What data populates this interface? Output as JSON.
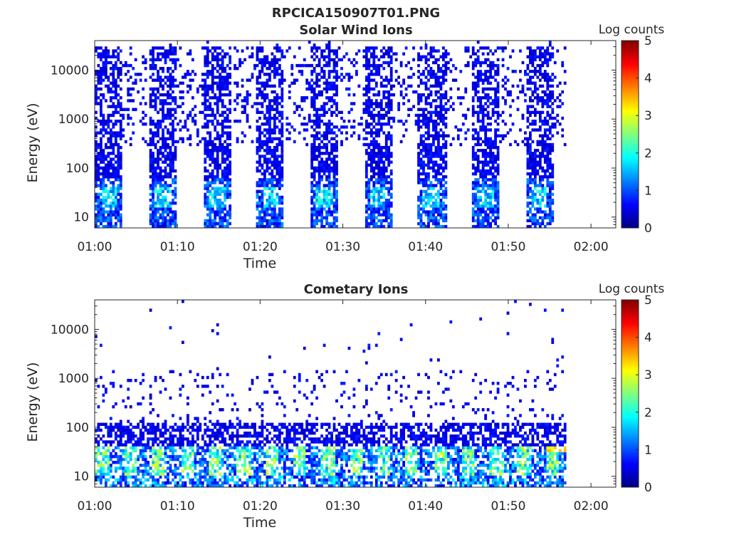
{
  "figure": {
    "title": "RPCICA150907T01.PNG"
  },
  "chart_data": [
    {
      "type": "heatmap",
      "title": "Solar Wind Ions",
      "xlabel": "Time",
      "ylabel": "Energy (eV)",
      "x_ticks": [
        "01:00",
        "01:10",
        "01:20",
        "01:30",
        "01:40",
        "01:50",
        "02:00"
      ],
      "x_range_minutes": [
        0,
        63
      ],
      "y_scale": "log",
      "y_ticks": [
        "10",
        "100",
        "1000",
        "10000"
      ],
      "y_range": [
        6,
        40000
      ],
      "colorbar": {
        "label": "Log counts",
        "ticks": [
          "0",
          "1",
          "2",
          "3",
          "4",
          "5"
        ],
        "range": [
          0,
          5
        ],
        "colormap": "jet"
      },
      "data_extent_minutes": [
        0,
        57
      ],
      "activity": {
        "sweep_period_minutes": 6.5,
        "sweep_width_minutes": 3.3,
        "dense_energy_max": 30000,
        "gap_energy_band": [
          6,
          250
        ],
        "gap_energy_sparse_band": [
          250,
          30000
        ],
        "peak_energy_range": [
          15,
          40
        ],
        "peak_log_counts": 2.2
      }
    },
    {
      "type": "heatmap",
      "title": "Cometary Ions",
      "xlabel": "Time",
      "ylabel": "Energy (eV)",
      "x_ticks": [
        "01:00",
        "01:10",
        "01:20",
        "01:30",
        "01:40",
        "01:50",
        "02:00"
      ],
      "x_range_minutes": [
        0,
        63
      ],
      "y_scale": "log",
      "y_ticks": [
        "10",
        "100",
        "1000",
        "10000"
      ],
      "y_range": [
        6,
        40000
      ],
      "colorbar": {
        "label": "Log counts",
        "ticks": [
          "0",
          "1",
          "2",
          "3",
          "4",
          "5"
        ],
        "range": [
          0,
          5
        ],
        "colormap": "jet"
      },
      "data_extent_minutes": [
        0,
        57
      ],
      "activity": {
        "dense_energy_max": 120,
        "sparse_energy_max": 1300,
        "peak_energy_range": [
          10,
          40
        ],
        "peak_log_counts": 3.0,
        "max_log_counts": 3.5,
        "max_log_counts_time_minutes": [
          54.5,
          57
        ],
        "max_log_counts_energy_range": [
          28,
          40
        ]
      }
    }
  ]
}
